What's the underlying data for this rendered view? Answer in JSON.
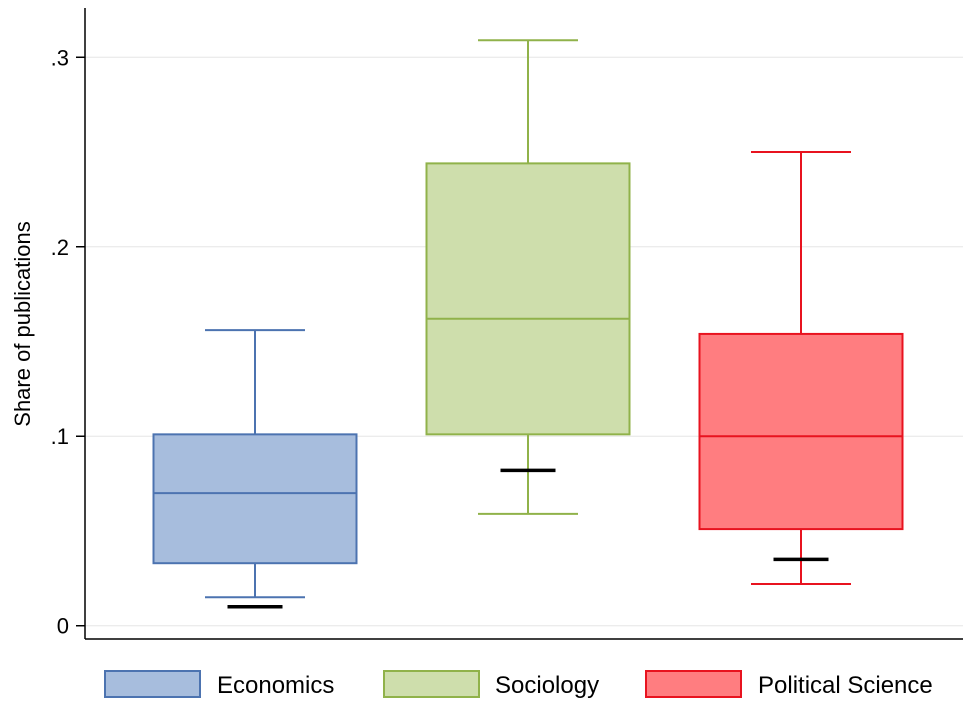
{
  "chart_data": {
    "type": "box",
    "ylabel": "Share of publications",
    "ylim": [
      -0.007,
      0.326
    ],
    "yticks": [
      {
        "value": 0,
        "label": "0"
      },
      {
        "value": 0.1,
        "label": ".1"
      },
      {
        "value": 0.2,
        "label": ".2"
      },
      {
        "value": 0.3,
        "label": ".3"
      }
    ],
    "grid": true,
    "legend_position": "bottom",
    "series": [
      {
        "name": "Economics",
        "color": "#4c73b0",
        "fill": "#a7bddd",
        "whisker_low": 0.015,
        "q1": 0.033,
        "median": 0.07,
        "q3": 0.101,
        "whisker_high": 0.156,
        "marker": 0.01
      },
      {
        "name": "Sociology",
        "color": "#90b24a",
        "fill": "#cedeac",
        "whisker_low": 0.059,
        "q1": 0.101,
        "median": 0.162,
        "q3": 0.244,
        "whisker_high": 0.309,
        "marker": 0.082
      },
      {
        "name": "Political Science",
        "color": "#e8131f",
        "fill": "#ff7d80",
        "whisker_low": 0.022,
        "q1": 0.051,
        "median": 0.1,
        "q3": 0.154,
        "whisker_high": 0.25,
        "marker": 0.035
      }
    ]
  }
}
